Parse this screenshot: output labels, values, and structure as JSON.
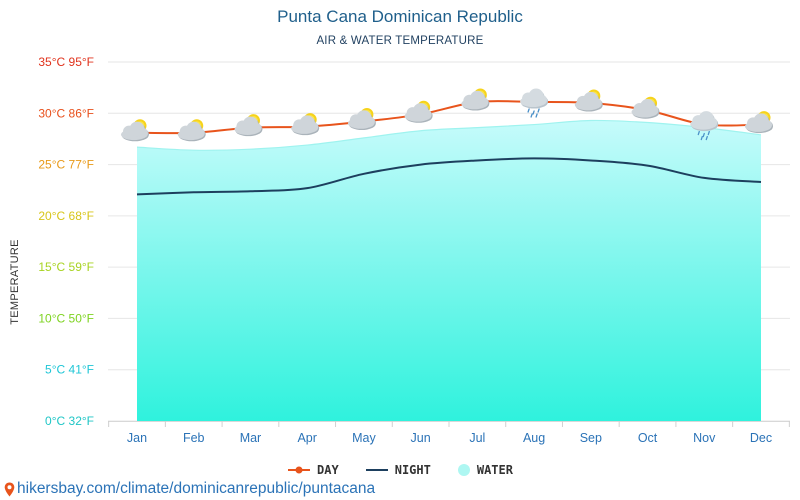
{
  "title": "Punta Cana Dominican Republic",
  "subtitle": "AIR & WATER TEMPERATURE",
  "source": "hikersbay.com/climate/dominicanrepublic/puntacana",
  "colors": {
    "day": "#e8541c",
    "night": "#1d3f5e",
    "water_top": "#c6fbfb",
    "water_bottom": "#2ff2dd",
    "title": "#1f5f8b",
    "month_labels": "#2b73b7"
  },
  "chart_data": {
    "type": "line",
    "title": "Punta Cana Dominican Republic",
    "subtitle": "AIR & WATER TEMPERATURE",
    "ylabel": "TEMPERATURE",
    "xlabel": "",
    "categories": [
      "Jan",
      "Feb",
      "Mar",
      "Apr",
      "May",
      "Jun",
      "Jul",
      "Aug",
      "Sep",
      "Oct",
      "Nov",
      "Dec"
    ],
    "ylim": [
      0,
      35
    ],
    "yticks": [
      {
        "value": 0,
        "label": "0°C 32°F",
        "color": "#1fc6c6"
      },
      {
        "value": 5,
        "label": "5°C 41°F",
        "color": "#1fc6d6"
      },
      {
        "value": 10,
        "label": "10°C 50°F",
        "color": "#7ed321"
      },
      {
        "value": 15,
        "label": "15°C 59°F",
        "color": "#a7d321"
      },
      {
        "value": 20,
        "label": "20°C 68°F",
        "color": "#d7c51a"
      },
      {
        "value": 25,
        "label": "25°C 77°F",
        "color": "#e89a1a"
      },
      {
        "value": 30,
        "label": "30°C 86°F",
        "color": "#e8501c"
      },
      {
        "value": 35,
        "label": "35°C 95°F",
        "color": "#e0321c"
      }
    ],
    "grid": true,
    "legend_position": "bottom-center",
    "series": [
      {
        "name": "DAY",
        "type": "line",
        "values": [
          28.1,
          28.1,
          28.6,
          28.7,
          29.2,
          29.9,
          31.1,
          31.1,
          31.0,
          30.3,
          28.9,
          28.9
        ]
      },
      {
        "name": "NIGHT",
        "type": "line",
        "values": [
          22.1,
          22.3,
          22.4,
          22.7,
          24.1,
          25.0,
          25.4,
          25.6,
          25.4,
          24.9,
          23.7,
          23.3
        ]
      },
      {
        "name": "WATER",
        "type": "area",
        "values": [
          26.7,
          26.4,
          26.5,
          26.9,
          27.6,
          28.3,
          28.6,
          28.9,
          29.3,
          29.1,
          28.6,
          27.9
        ]
      }
    ],
    "weather_icons": [
      "partly-cloudy-icon",
      "partly-cloudy-icon",
      "partly-cloudy-icon",
      "partly-cloudy-icon",
      "partly-cloudy-icon",
      "partly-cloudy-icon",
      "partly-cloudy-icon",
      "rain-cloud-icon",
      "partly-cloudy-icon",
      "partly-cloudy-icon",
      "rain-cloud-icon",
      "partly-cloudy-icon"
    ]
  }
}
